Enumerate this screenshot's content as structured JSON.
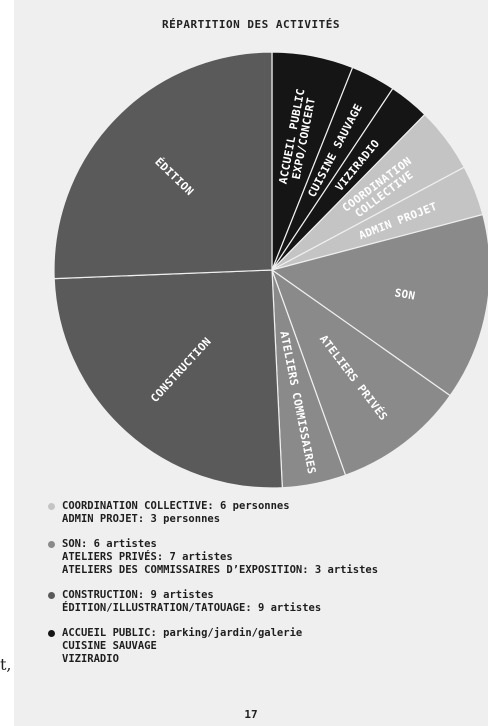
{
  "page": {
    "page_number": "17",
    "edge_fragment": "t,"
  },
  "chart_data": {
    "type": "pie",
    "title": "RÉPARTITION DES ACTIVITÉS",
    "slices": [
      {
        "label": "ACCUEIL PUBLIC\nEXPO/CONCERT",
        "value": 12.0,
        "color": "#151515",
        "text_color": "#ffffff"
      },
      {
        "label": "CUISINE SAUVAGE",
        "value": 6.6,
        "color": "#151515",
        "text_color": "#ffffff"
      },
      {
        "label": "VIZIRADIO",
        "value": 6.0,
        "color": "#151515",
        "text_color": "#ffffff"
      },
      {
        "label": "COORDINATION\nCOLLECTIVE",
        "value": 9.6,
        "color": "#c4c4c4",
        "text_color": "#ffffff"
      },
      {
        "label": "ADMIN PROJET",
        "value": 7.4,
        "color": "#c4c4c4",
        "text_color": "#ffffff"
      },
      {
        "label": "SON",
        "value": 27.6,
        "color": "#8a8a8a",
        "text_color": "#ffffff"
      },
      {
        "label": "ATELIERS PRIVÉS",
        "value": 19.4,
        "color": "#8a8a8a",
        "text_color": "#ffffff"
      },
      {
        "label": "ATELIERS COMMISSAIRES",
        "value": 9.4,
        "color": "#8a8a8a",
        "text_color": "#ffffff"
      },
      {
        "label": "CONSTRUCTION",
        "value": 50.0,
        "color": "#5a5a5a",
        "text_color": "#ffffff"
      },
      {
        "label": "ÉDITION",
        "value": 51.0,
        "color": "#5a5a5a",
        "text_color": "#ffffff"
      }
    ],
    "legend": [
      {
        "color": "#c4c4c4",
        "lines": [
          "COORDINATION COLLECTIVE: 6 personnes",
          "ADMIN PROJET: 3 personnes"
        ]
      },
      {
        "color": "#8a8a8a",
        "lines": [
          "SON: 6 artistes",
          "ATELIERS PRIVÉS: 7 artistes",
          "ATELIERS DES COMMISSAIRES D’EXPOSITION: 3 artistes"
        ]
      },
      {
        "color": "#5a5a5a",
        "lines": [
          "CONSTRUCTION: 9 artistes",
          "ÉDITION/ILLUSTRATION/TATOUAGE: 9 artistes"
        ]
      },
      {
        "color": "#151515",
        "lines": [
          "ACCUEIL PUBLIC: parking/jardin/galerie",
          "CUISINE SAUVAGE",
          "VIZIRADIO"
        ]
      }
    ]
  }
}
